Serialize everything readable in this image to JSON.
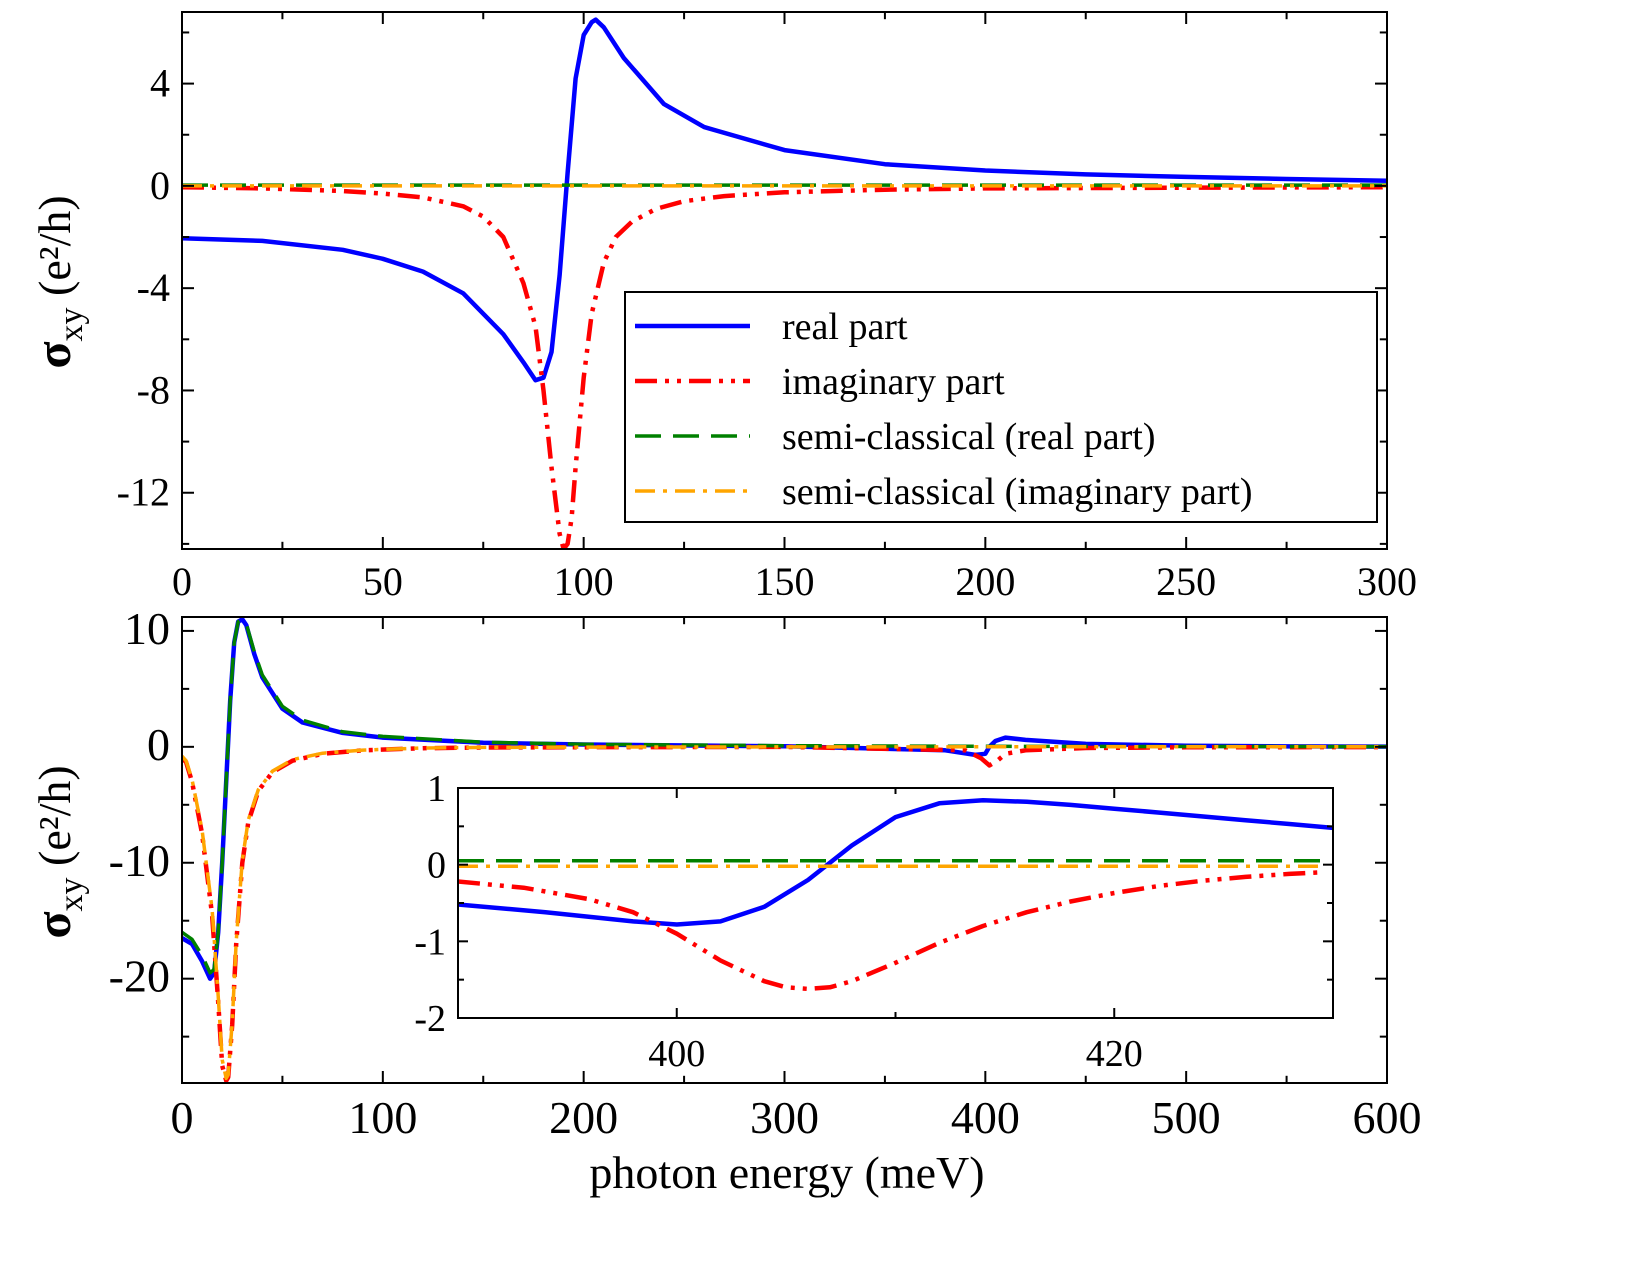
{
  "chart_data": [
    {
      "id": "top",
      "type": "line",
      "xlabel": "",
      "ylabel": "σxy (e²/h)",
      "xlim": [
        0,
        300
      ],
      "ylim": [
        -14.2,
        6.8
      ],
      "xticks": [
        0,
        50,
        100,
        150,
        200,
        250,
        300
      ],
      "yticks": [
        4,
        0,
        -4,
        -8,
        -12
      ],
      "legend": {
        "placement": "lower-right",
        "entries": [
          "real part",
          "imaginary part",
          "semi-classical (real part)",
          "semi-classical (imaginary part)"
        ]
      },
      "series": [
        {
          "name": "real part",
          "color": "#0000ff",
          "style": "solid",
          "x": [
            0,
            20,
            40,
            50,
            60,
            70,
            80,
            85,
            88,
            90,
            92,
            94,
            96,
            98,
            100,
            102,
            103,
            105,
            110,
            120,
            130,
            150,
            175,
            200,
            225,
            250,
            275,
            300
          ],
          "y": [
            -2.05,
            -2.15,
            -2.5,
            -2.85,
            -3.35,
            -4.2,
            -5.8,
            -6.9,
            -7.6,
            -7.5,
            -6.5,
            -3.5,
            0.5,
            4.2,
            5.9,
            6.4,
            6.5,
            6.2,
            5.0,
            3.2,
            2.3,
            1.4,
            0.85,
            0.6,
            0.45,
            0.35,
            0.27,
            0.2
          ]
        },
        {
          "name": "imaginary part",
          "color": "#ff0000",
          "style": "dash-dot-dot",
          "x": [
            0,
            20,
            40,
            50,
            60,
            70,
            75,
            80,
            85,
            88,
            90,
            92,
            94,
            95,
            96,
            97,
            98,
            100,
            102,
            105,
            108,
            112,
            118,
            125,
            135,
            150,
            175,
            200,
            250,
            300
          ],
          "y": [
            -0.05,
            -0.1,
            -0.2,
            -0.3,
            -0.45,
            -0.8,
            -1.2,
            -2.0,
            -3.8,
            -5.5,
            -8.0,
            -11.0,
            -13.6,
            -14.2,
            -14.0,
            -13.0,
            -11.0,
            -7.5,
            -5.0,
            -3.0,
            -2.0,
            -1.4,
            -0.9,
            -0.6,
            -0.4,
            -0.25,
            -0.15,
            -0.1,
            -0.07,
            -0.05
          ]
        },
        {
          "name": "semi-classical (real part)",
          "color": "#008000",
          "style": "dash",
          "x": [
            0,
            300
          ],
          "y": [
            0.03,
            0.03
          ]
        },
        {
          "name": "semi-classical (imaginary part)",
          "color": "#ffa500",
          "style": "dash-dot",
          "x": [
            0,
            300
          ],
          "y": [
            0.0,
            0.0
          ]
        }
      ]
    },
    {
      "id": "bottom",
      "type": "line",
      "xlabel": "photon energy (meV)",
      "ylabel": "σxy (e²/h)",
      "xlim": [
        0,
        600
      ],
      "ylim": [
        -29,
        11.2
      ],
      "xticks": [
        0,
        100,
        200,
        300,
        400,
        500,
        600
      ],
      "yticks": [
        10,
        0,
        -10,
        -20
      ],
      "series": [
        {
          "name": "real part",
          "color": "#0000ff",
          "style": "solid",
          "x": [
            0,
            5,
            10,
            14,
            16,
            18,
            20,
            22,
            24,
            26,
            28,
            30,
            32,
            36,
            40,
            50,
            60,
            80,
            100,
            150,
            200,
            300,
            380,
            395,
            400,
            402,
            405,
            410,
            420,
            450,
            500,
            550,
            600
          ],
          "y": [
            -16.5,
            -17.0,
            -18.5,
            -20.0,
            -19.5,
            -16.0,
            -10.0,
            -3.0,
            4.0,
            9.0,
            10.8,
            11.0,
            10.5,
            8.0,
            6.0,
            3.3,
            2.1,
            1.2,
            0.8,
            0.35,
            0.2,
            0.05,
            -0.3,
            -0.7,
            -0.6,
            0.0,
            0.5,
            0.8,
            0.6,
            0.25,
            0.1,
            0.04,
            0.02
          ]
        },
        {
          "name": "imaginary part",
          "color": "#ff0000",
          "style": "dash-dot-dot",
          "x": [
            0,
            2,
            5,
            10,
            15,
            18,
            20,
            22,
            23,
            25,
            27,
            30,
            33,
            38,
            45,
            55,
            70,
            90,
            120,
            150,
            200,
            300,
            390,
            398,
            402,
            406,
            410,
            420,
            450,
            500,
            600
          ],
          "y": [
            -1.0,
            -1.3,
            -3.0,
            -7.5,
            -14.5,
            -22.0,
            -27.5,
            -28.8,
            -28.5,
            -24.0,
            -17.0,
            -10.0,
            -6.5,
            -3.8,
            -2.2,
            -1.2,
            -0.6,
            -0.3,
            -0.12,
            -0.06,
            -0.03,
            -0.01,
            -0.3,
            -1.0,
            -1.6,
            -1.2,
            -0.6,
            -0.3,
            -0.1,
            -0.04,
            -0.02
          ]
        },
        {
          "name": "semi-classical (real part)",
          "color": "#008000",
          "style": "dash",
          "x": [
            0,
            5,
            10,
            14,
            16,
            18,
            20,
            22,
            24,
            26,
            28,
            30,
            32,
            36,
            40,
            50,
            60,
            80,
            100,
            150,
            200,
            300,
            400,
            500,
            600
          ],
          "y": [
            -16.0,
            -16.6,
            -18.0,
            -19.5,
            -19.2,
            -16.0,
            -10.0,
            -3.0,
            4.0,
            9.0,
            10.8,
            11.0,
            10.6,
            8.2,
            6.2,
            3.5,
            2.3,
            1.3,
            0.9,
            0.4,
            0.22,
            0.1,
            0.05,
            0.03,
            0.02
          ]
        },
        {
          "name": "semi-classical (imaginary part)",
          "color": "#ffa500",
          "style": "dash-dot",
          "x": [
            0,
            2,
            5,
            10,
            15,
            18,
            20,
            22,
            23,
            25,
            27,
            30,
            33,
            38,
            45,
            55,
            70,
            90,
            120,
            150,
            200,
            300,
            400,
            500,
            600
          ],
          "y": [
            -0.8,
            -1.2,
            -2.8,
            -7.2,
            -14.0,
            -21.5,
            -27.0,
            -28.6,
            -28.3,
            -23.8,
            -16.8,
            -9.8,
            -6.3,
            -3.7,
            -2.1,
            -1.1,
            -0.55,
            -0.28,
            -0.1,
            -0.05,
            -0.02,
            -0.01,
            0.0,
            0.0,
            0.0
          ]
        }
      ]
    },
    {
      "id": "inset",
      "type": "line",
      "xlim": [
        390,
        430
      ],
      "ylim": [
        -2,
        1
      ],
      "xticks": [
        400,
        420
      ],
      "yticks": [
        1,
        0,
        -1,
        -2
      ],
      "series": [
        {
          "name": "real part",
          "color": "#0000ff",
          "style": "solid",
          "x": [
            390,
            394,
            398,
            400,
            402,
            404,
            406,
            408,
            410,
            412,
            414,
            416,
            418,
            420,
            422,
            424,
            426,
            428,
            430
          ],
          "y": [
            -0.52,
            -0.62,
            -0.74,
            -0.78,
            -0.74,
            -0.55,
            -0.2,
            0.25,
            0.62,
            0.8,
            0.84,
            0.82,
            0.78,
            0.73,
            0.68,
            0.63,
            0.58,
            0.53,
            0.48
          ]
        },
        {
          "name": "imaginary part",
          "color": "#ff0000",
          "style": "dash-dot-dot",
          "x": [
            390,
            393,
            396,
            398,
            400,
            402,
            404,
            405,
            406,
            407,
            408,
            410,
            412,
            414,
            416,
            418,
            420,
            422,
            424,
            426,
            428,
            429.5
          ],
          "y": [
            -0.22,
            -0.3,
            -0.45,
            -0.62,
            -0.9,
            -1.25,
            -1.52,
            -1.6,
            -1.62,
            -1.6,
            -1.52,
            -1.28,
            -1.02,
            -0.8,
            -0.62,
            -0.48,
            -0.37,
            -0.28,
            -0.21,
            -0.16,
            -0.12,
            -0.1
          ]
        },
        {
          "name": "semi-classical (real part)",
          "color": "#008000",
          "style": "dash",
          "x": [
            390,
            429.5
          ],
          "y": [
            0.05,
            0.05
          ]
        },
        {
          "name": "semi-classical (imaginary part)",
          "color": "#ffa500",
          "style": "dash-dot",
          "x": [
            390,
            429.5
          ],
          "y": [
            -0.02,
            -0.02
          ]
        }
      ]
    }
  ]
}
